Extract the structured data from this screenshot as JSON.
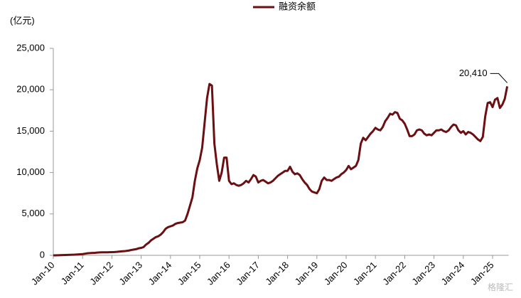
{
  "chart_data": {
    "type": "line",
    "y_unit_label": "(亿元)",
    "watermark": "格隆汇",
    "legend_position": "top",
    "categories": [
      "Jan-10",
      null,
      null,
      null,
      null,
      null,
      null,
      null,
      null,
      null,
      null,
      null,
      "Jan-11",
      null,
      null,
      null,
      null,
      null,
      null,
      null,
      null,
      null,
      null,
      null,
      "Jan-12",
      null,
      null,
      null,
      null,
      null,
      null,
      null,
      null,
      null,
      null,
      null,
      "Jan-13",
      null,
      null,
      null,
      null,
      null,
      null,
      null,
      null,
      null,
      null,
      null,
      "Jan-14",
      null,
      null,
      null,
      null,
      null,
      null,
      null,
      null,
      null,
      null,
      null,
      "Jan-15",
      null,
      null,
      null,
      null,
      null,
      null,
      null,
      null,
      null,
      null,
      null,
      "Jan-16",
      null,
      null,
      null,
      null,
      null,
      null,
      null,
      null,
      null,
      null,
      null,
      "Jan-17",
      null,
      null,
      null,
      null,
      null,
      null,
      null,
      null,
      null,
      null,
      null,
      "Jan-18",
      null,
      null,
      null,
      null,
      null,
      null,
      null,
      null,
      null,
      null,
      null,
      "Jan-19",
      null,
      null,
      null,
      null,
      null,
      null,
      null,
      null,
      null,
      null,
      null,
      "Jan-20",
      null,
      null,
      null,
      null,
      null,
      null,
      null,
      null,
      null,
      null,
      null,
      "Jan-21",
      null,
      null,
      null,
      null,
      null,
      null,
      null,
      null,
      null,
      null,
      null,
      "Jan-22",
      null,
      null,
      null,
      null,
      null,
      null,
      null,
      null,
      null,
      null,
      null,
      "Jan-23",
      null,
      null,
      null,
      null,
      null,
      null,
      null,
      null,
      null,
      null,
      null,
      "Jan-24",
      null,
      null,
      null,
      null,
      null,
      null,
      null,
      null,
      null,
      null,
      null,
      "Jan-25",
      null,
      null,
      null,
      null,
      null,
      null
    ],
    "series": [
      {
        "name": "融资余额",
        "color": "#6b0f12",
        "values": [
          1,
          5,
          10,
          20,
          30,
          40,
          50,
          60,
          70,
          90,
          110,
          127,
          150,
          200,
          250,
          270,
          290,
          300,
          330,
          350,
          360,
          370,
          370,
          380,
          390,
          400,
          420,
          450,
          480,
          500,
          540,
          580,
          650,
          700,
          750,
          850,
          900,
          1000,
          1300,
          1500,
          1800,
          2000,
          2200,
          2300,
          2500,
          2800,
          3200,
          3400,
          3500,
          3600,
          3800,
          3900,
          3950,
          4000,
          4200,
          5000,
          6000,
          7000,
          9000,
          10500,
          11500,
          13000,
          16000,
          19000,
          20700,
          20500,
          13500,
          11000,
          9000,
          10000,
          11800,
          11800,
          9000,
          8600,
          8700,
          8500,
          8400,
          8500,
          8700,
          9000,
          8800,
          9200,
          9700,
          9500,
          8800,
          9000,
          9100,
          8900,
          8700,
          8800,
          9000,
          9300,
          9600,
          9800,
          10000,
          10200,
          10200,
          10700,
          10100,
          9800,
          9900,
          9700,
          9200,
          8800,
          8500,
          8000,
          7700,
          7600,
          7500,
          8000,
          9000,
          9400,
          9100,
          9100,
          9000,
          9200,
          9400,
          9500,
          9800,
          10000,
          10300,
          10800,
          10400,
          10600,
          10800,
          11500,
          13500,
          14200,
          13900,
          14300,
          14700,
          15000,
          15400,
          15200,
          15100,
          15500,
          16200,
          16600,
          17100,
          17000,
          17300,
          17200,
          16500,
          16300,
          15900,
          15200,
          14400,
          14400,
          14600,
          15100,
          15200,
          15100,
          14700,
          14500,
          14600,
          14500,
          14800,
          15100,
          15100,
          15200,
          15000,
          14900,
          15100,
          15500,
          15800,
          15700,
          15100,
          14800,
          15000,
          14600,
          14900,
          14800,
          14600,
          14300,
          14000,
          13800,
          14300,
          16800,
          18400,
          18500,
          17900,
          18800,
          19000,
          17800,
          18200,
          18900,
          20410
        ],
        "value_labels": [
          null,
          null,
          null,
          null,
          null,
          null,
          null,
          null,
          null,
          null,
          null,
          null,
          null,
          null,
          null,
          null,
          null,
          null,
          null,
          null,
          null,
          null,
          null,
          null,
          null,
          null,
          null,
          null,
          null,
          null,
          null,
          null,
          null,
          null,
          null,
          null,
          null,
          null,
          null,
          null,
          null,
          null,
          null,
          null,
          null,
          null,
          null,
          null,
          null,
          null,
          null,
          null,
          null,
          null,
          null,
          null,
          null,
          null,
          null,
          null,
          null,
          null,
          null,
          null,
          null,
          null,
          null,
          null,
          null,
          null,
          null,
          null,
          null,
          null,
          null,
          null,
          null,
          null,
          null,
          null,
          null,
          null,
          null,
          null,
          null,
          null,
          null,
          null,
          null,
          null,
          null,
          null,
          null,
          null,
          null,
          null,
          null,
          null,
          null,
          null,
          null,
          null,
          null,
          null,
          null,
          null,
          null,
          null,
          null,
          null,
          null,
          null,
          null,
          null,
          null,
          null,
          null,
          null,
          null,
          null,
          null,
          null,
          null,
          null,
          null,
          null,
          null,
          null,
          null,
          null,
          null,
          null,
          null,
          null,
          null,
          null,
          null,
          null,
          null,
          null,
          null,
          null,
          null,
          null,
          null,
          null,
          null,
          null,
          null,
          null,
          null,
          null,
          null,
          null,
          null,
          null,
          null,
          null,
          null,
          null,
          null,
          null,
          null,
          null,
          null,
          null,
          null,
          null,
          null,
          null,
          null,
          null,
          null,
          null,
          null,
          null,
          null,
          null,
          null,
          null,
          null,
          null,
          null,
          null,
          null,
          null,
          "20,410"
        ]
      }
    ],
    "ylim": [
      0,
      25000
    ],
    "yticks": [
      0,
      {
        "value": 5000,
        "label": "5,000"
      },
      {
        "value": 10000,
        "label": "10,000"
      },
      {
        "value": 15000,
        "label": "15,000"
      },
      {
        "value": 20000,
        "label": "20,000"
      },
      {
        "value": 25000,
        "label": "25,000"
      }
    ],
    "grid": false
  }
}
